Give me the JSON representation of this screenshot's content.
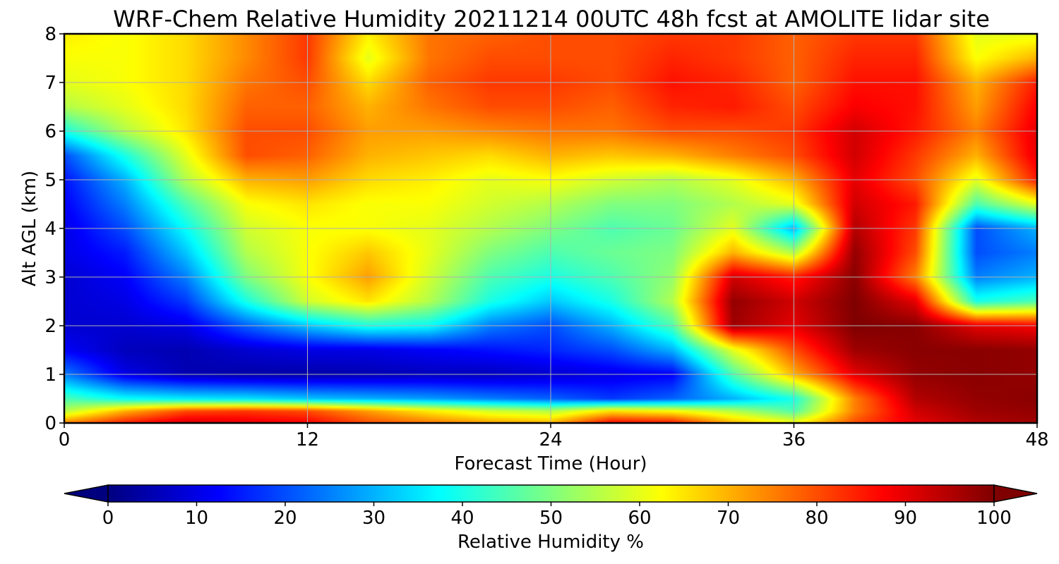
{
  "chart_data": {
    "type": "heatmap",
    "title": "WRF-Chem Relative Humidity 20211214 00UTC 48h fcst at AMOLITE lidar site",
    "xlabel": "Forecast Time (Hour)",
    "ylabel": "Alt AGL (km)",
    "xlim": [
      0,
      48
    ],
    "ylim": [
      0,
      8
    ],
    "xticks": [
      "0",
      "12",
      "24",
      "36",
      "48"
    ],
    "yticks": [
      "0",
      "1",
      "2",
      "3",
      "4",
      "5",
      "6",
      "7",
      "8"
    ],
    "grid": true,
    "colormap": "jet",
    "colorbar": {
      "label": "Relative Humidity %",
      "range": [
        0,
        100
      ],
      "ticks": [
        "0",
        "10",
        "20",
        "30",
        "40",
        "50",
        "60",
        "70",
        "80",
        "90",
        "100"
      ],
      "extend": "both"
    },
    "x": [
      0,
      3,
      6,
      9,
      12,
      15,
      18,
      21,
      24,
      27,
      30,
      33,
      36,
      39,
      42,
      45,
      48
    ],
    "y": [
      0,
      0.25,
      0.5,
      1,
      1.5,
      2,
      2.5,
      3,
      3.5,
      4,
      4.5,
      5,
      5.5,
      6,
      6.5,
      7,
      7.5,
      8
    ],
    "z": [
      [
        75,
        85,
        92,
        90,
        88,
        80,
        76,
        72,
        70,
        88,
        86,
        70,
        62,
        80,
        90,
        95,
        97
      ],
      [
        55,
        70,
        80,
        82,
        80,
        72,
        64,
        58,
        55,
        65,
        62,
        55,
        45,
        75,
        92,
        97,
        98
      ],
      [
        45,
        38,
        36,
        35,
        32,
        30,
        28,
        25,
        22,
        18,
        22,
        30,
        40,
        75,
        95,
        98,
        99
      ],
      [
        25,
        10,
        5,
        4,
        4,
        5,
        6,
        6,
        8,
        10,
        12,
        45,
        70,
        90,
        98,
        99,
        98
      ],
      [
        12,
        6,
        5,
        8,
        10,
        10,
        12,
        14,
        16,
        20,
        30,
        60,
        80,
        97,
        99,
        99,
        98
      ],
      [
        8,
        8,
        10,
        22,
        32,
        40,
        38,
        25,
        20,
        30,
        45,
        97,
        90,
        100,
        99,
        90,
        88
      ],
      [
        8,
        10,
        18,
        40,
        58,
        65,
        55,
        40,
        32,
        40,
        55,
        98,
        92,
        100,
        90,
        40,
        45
      ],
      [
        8,
        12,
        25,
        50,
        62,
        72,
        58,
        45,
        40,
        45,
        52,
        92,
        85,
        99,
        75,
        25,
        30
      ],
      [
        10,
        15,
        32,
        55,
        62,
        68,
        60,
        50,
        45,
        48,
        50,
        70,
        55,
        98,
        80,
        20,
        25
      ],
      [
        10,
        20,
        38,
        58,
        62,
        62,
        60,
        55,
        50,
        45,
        48,
        60,
        30,
        95,
        82,
        20,
        30
      ],
      [
        12,
        25,
        45,
        62,
        65,
        62,
        62,
        58,
        55,
        50,
        50,
        55,
        60,
        92,
        85,
        45,
        60
      ],
      [
        14,
        30,
        55,
        70,
        72,
        66,
        64,
        60,
        62,
        58,
        55,
        60,
        70,
        90,
        80,
        60,
        85
      ],
      [
        20,
        40,
        60,
        80,
        78,
        70,
        68,
        66,
        70,
        68,
        70,
        75,
        80,
        92,
        82,
        70,
        90
      ],
      [
        40,
        55,
        65,
        80,
        80,
        72,
        72,
        74,
        76,
        76,
        80,
        80,
        82,
        92,
        85,
        75,
        90
      ],
      [
        55,
        60,
        66,
        78,
        78,
        70,
        76,
        80,
        80,
        78,
        84,
        85,
        80,
        88,
        86,
        72,
        88
      ],
      [
        60,
        62,
        66,
        76,
        80,
        66,
        78,
        82,
        82,
        80,
        86,
        84,
        78,
        86,
        86,
        70,
        85
      ],
      [
        62,
        62,
        66,
        74,
        82,
        60,
        76,
        80,
        80,
        80,
        84,
        82,
        78,
        84,
        84,
        62,
        70
      ],
      [
        64,
        62,
        66,
        74,
        82,
        64,
        76,
        78,
        80,
        80,
        82,
        82,
        78,
        82,
        82,
        60,
        60
      ]
    ]
  }
}
